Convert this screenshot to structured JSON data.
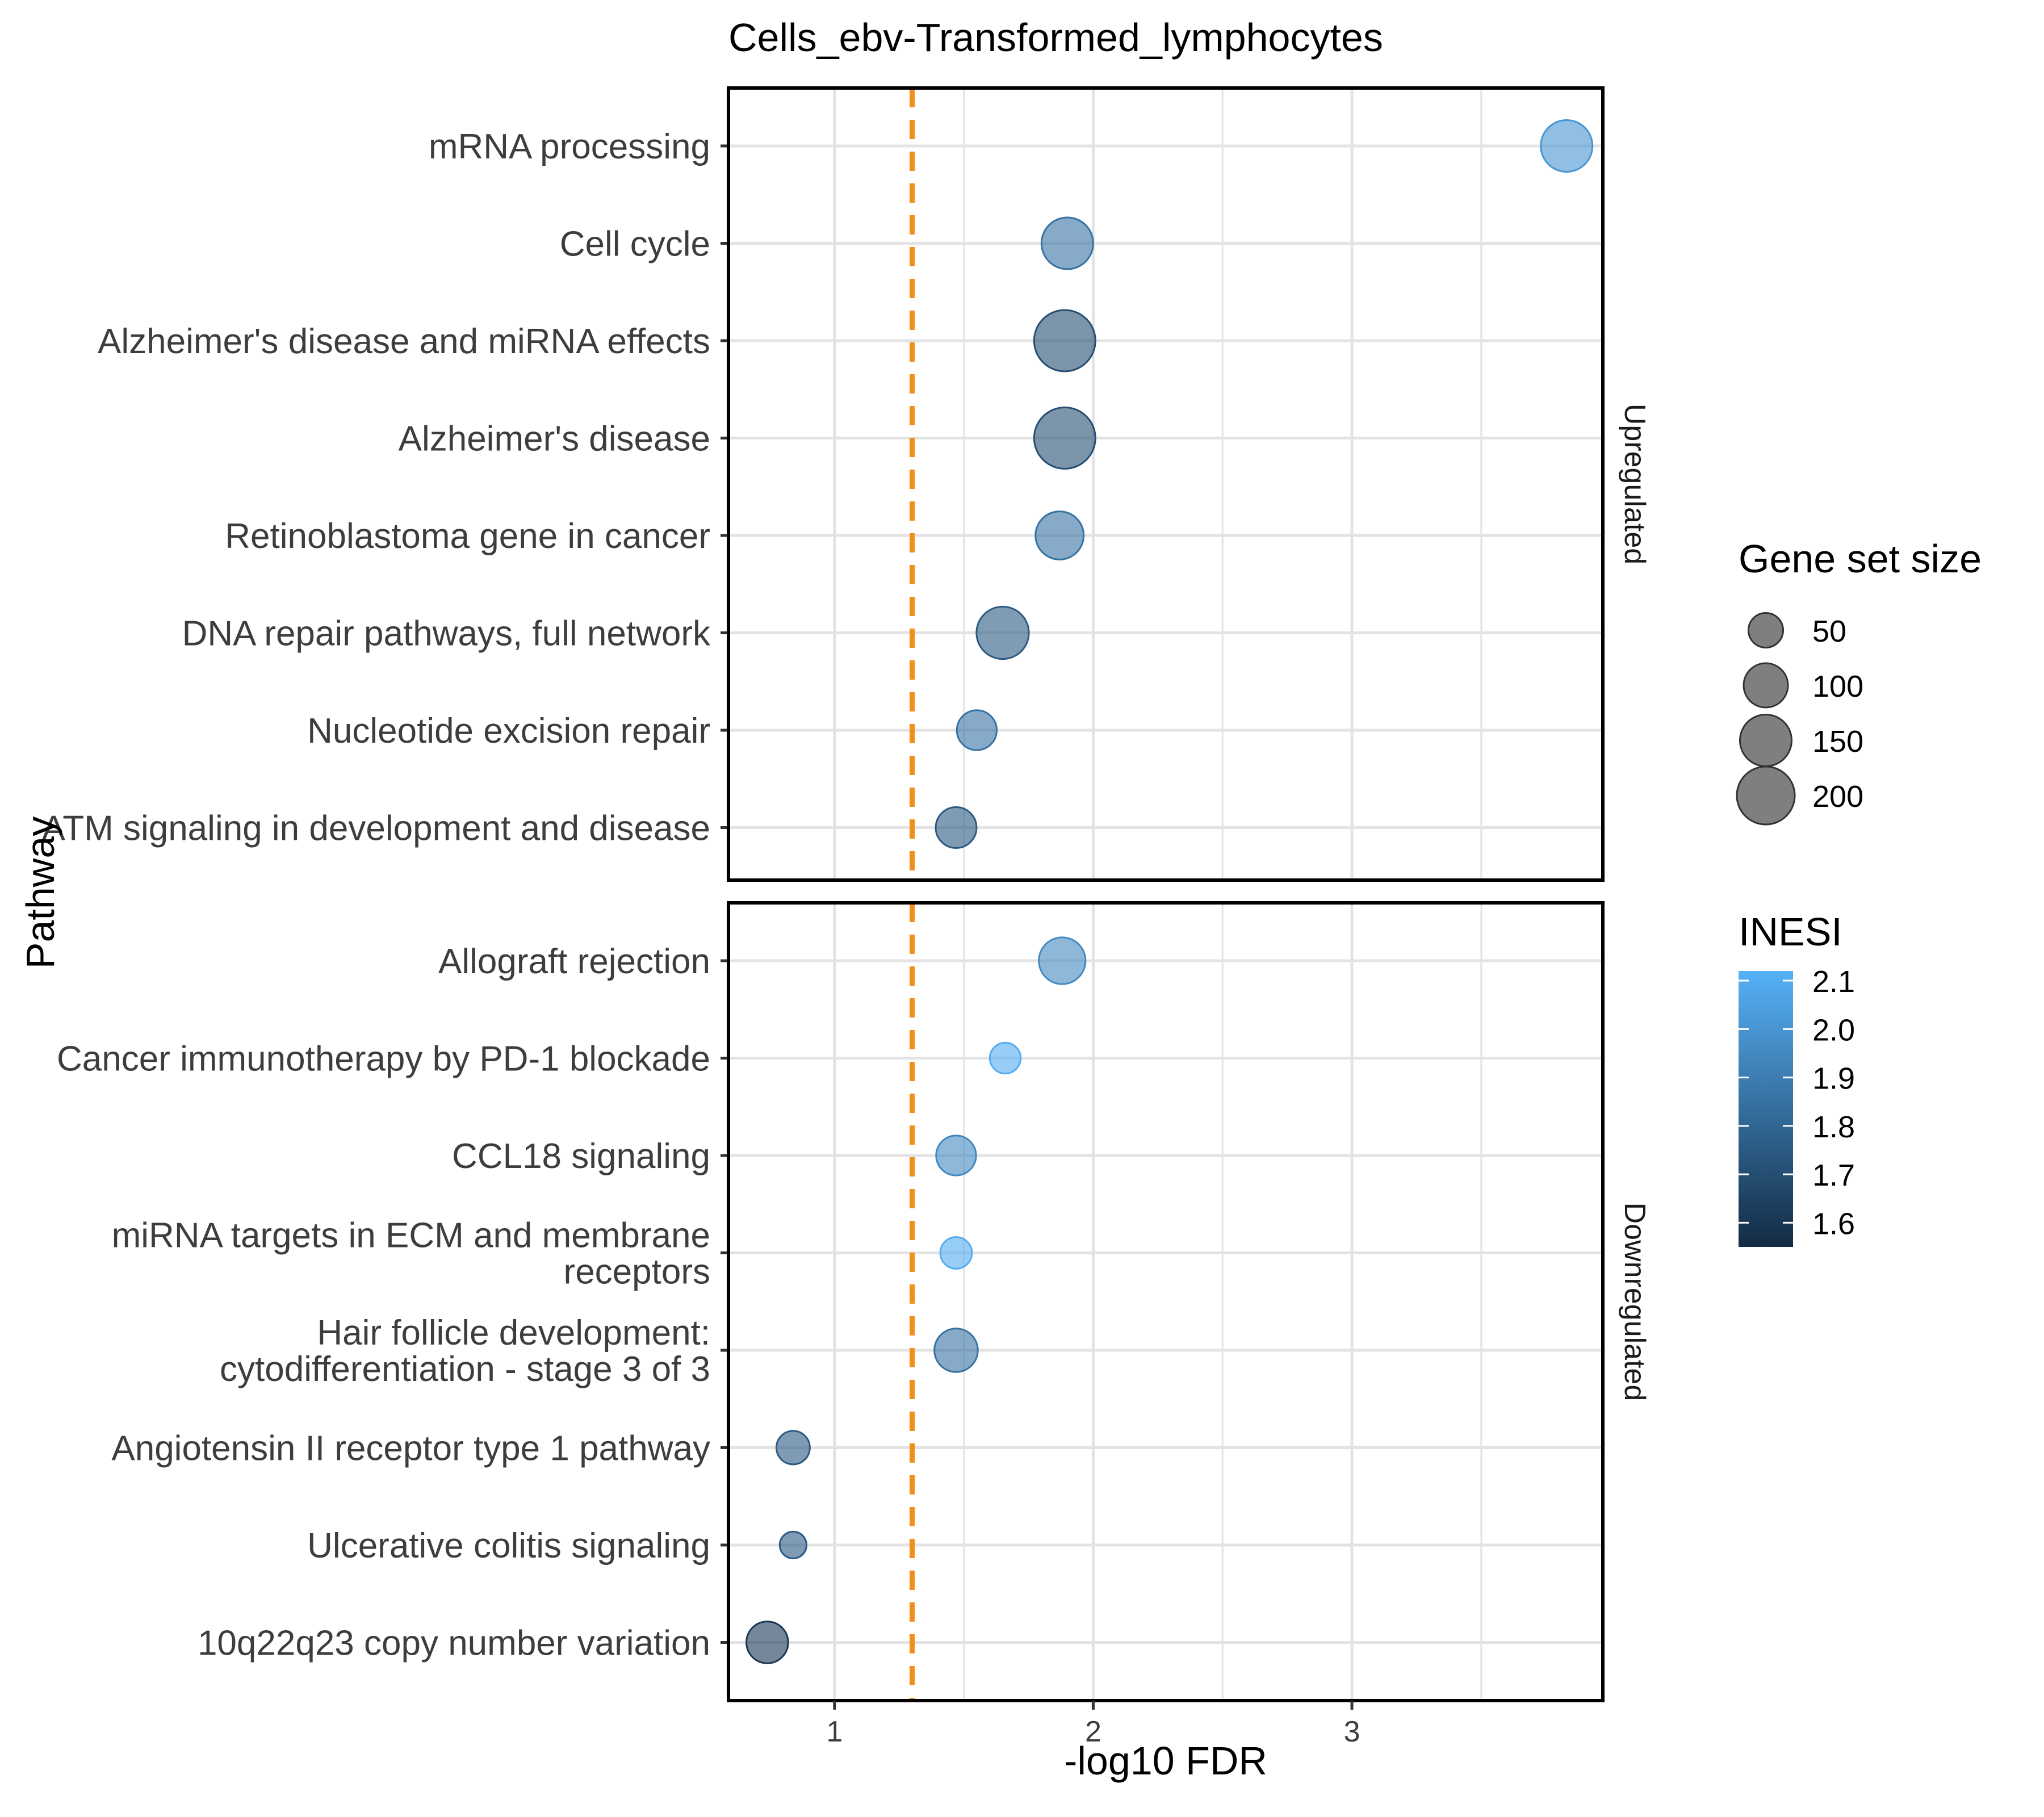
{
  "chart_data": {
    "type": "scatter",
    "title": "Cells_ebv-Transformed_lymphocytes",
    "xlabel": "-log10 FDR",
    "ylabel": "Pathway",
    "xlim": [
      0.59,
      3.97
    ],
    "x_ticks": [
      1,
      2,
      3
    ],
    "grid": true,
    "reference_line": {
      "x": 1.3,
      "color": "#F28E1B",
      "style": "dashed"
    },
    "panels": [
      {
        "name": "Upregulated",
        "points": [
          {
            "label": [
              "mRNA processing"
            ],
            "x": 3.83,
            "size": 150,
            "nes": 2.0
          },
          {
            "label": [
              "Cell cycle"
            ],
            "x": 1.9,
            "size": 150,
            "nes": 1.85
          },
          {
            "label": [
              "Alzheimer's disease and miRNA effects"
            ],
            "x": 1.89,
            "size": 230,
            "nes": 1.7
          },
          {
            "label": [
              "Alzheimer's disease"
            ],
            "x": 1.89,
            "size": 230,
            "nes": 1.7
          },
          {
            "label": [
              "Retinoblastoma gene in cancer"
            ],
            "x": 1.87,
            "size": 125,
            "nes": 1.85
          },
          {
            "label": [
              "DNA repair pathways, full network"
            ],
            "x": 1.65,
            "size": 155,
            "nes": 1.75
          },
          {
            "label": [
              "Nucleotide excision repair"
            ],
            "x": 1.55,
            "size": 75,
            "nes": 1.85
          },
          {
            "label": [
              "ATM signaling in development and disease"
            ],
            "x": 1.47,
            "size": 80,
            "nes": 1.75
          }
        ]
      },
      {
        "name": "Downregulated",
        "points": [
          {
            "label": [
              "Allograft rejection"
            ],
            "x": 1.88,
            "size": 115,
            "nes": 1.95
          },
          {
            "label": [
              "Cancer immunotherapy by PD-1 blockade"
            ],
            "x": 1.66,
            "size": 35,
            "nes": 2.1
          },
          {
            "label": [
              "CCL18 signaling"
            ],
            "x": 1.47,
            "size": 75,
            "nes": 1.95
          },
          {
            "label": [
              "miRNA targets in ECM and membrane",
              "receptors"
            ],
            "x": 1.47,
            "size": 38,
            "nes": 2.1
          },
          {
            "label": [
              "Hair follicle development:",
              "cytodifferentiation - stage 3 of 3"
            ],
            "x": 1.47,
            "size": 95,
            "nes": 1.85
          },
          {
            "label": [
              "Angiotensin II receptor type 1 pathway"
            ],
            "x": 0.84,
            "size": 45,
            "nes": 1.75
          },
          {
            "label": [
              "Ulcerative colitis signaling"
            ],
            "x": 0.84,
            "size": 22,
            "nes": 1.75
          },
          {
            "label": [
              "10q22q23 copy number variation"
            ],
            "x": 0.74,
            "size": 85,
            "nes": 1.6
          }
        ]
      }
    ],
    "size_legend": {
      "title": "Gene set size",
      "entries": [
        {
          "label": "50",
          "size": 50
        },
        {
          "label": "100",
          "size": 100
        },
        {
          "label": "150",
          "size": 150
        },
        {
          "label": "200",
          "size": 200
        }
      ]
    },
    "color_legend": {
      "title": "INESI",
      "range": [
        1.55,
        2.12
      ],
      "ticks": [
        2.1,
        2.0,
        1.9,
        1.8,
        1.7,
        1.6
      ],
      "tick_labels": [
        "2.1",
        "2.0",
        "1.9",
        "1.8",
        "1.7",
        "1.6"
      ],
      "color_low": "#132B43",
      "color_high": "#56B1F7"
    },
    "legend_position": "right"
  }
}
